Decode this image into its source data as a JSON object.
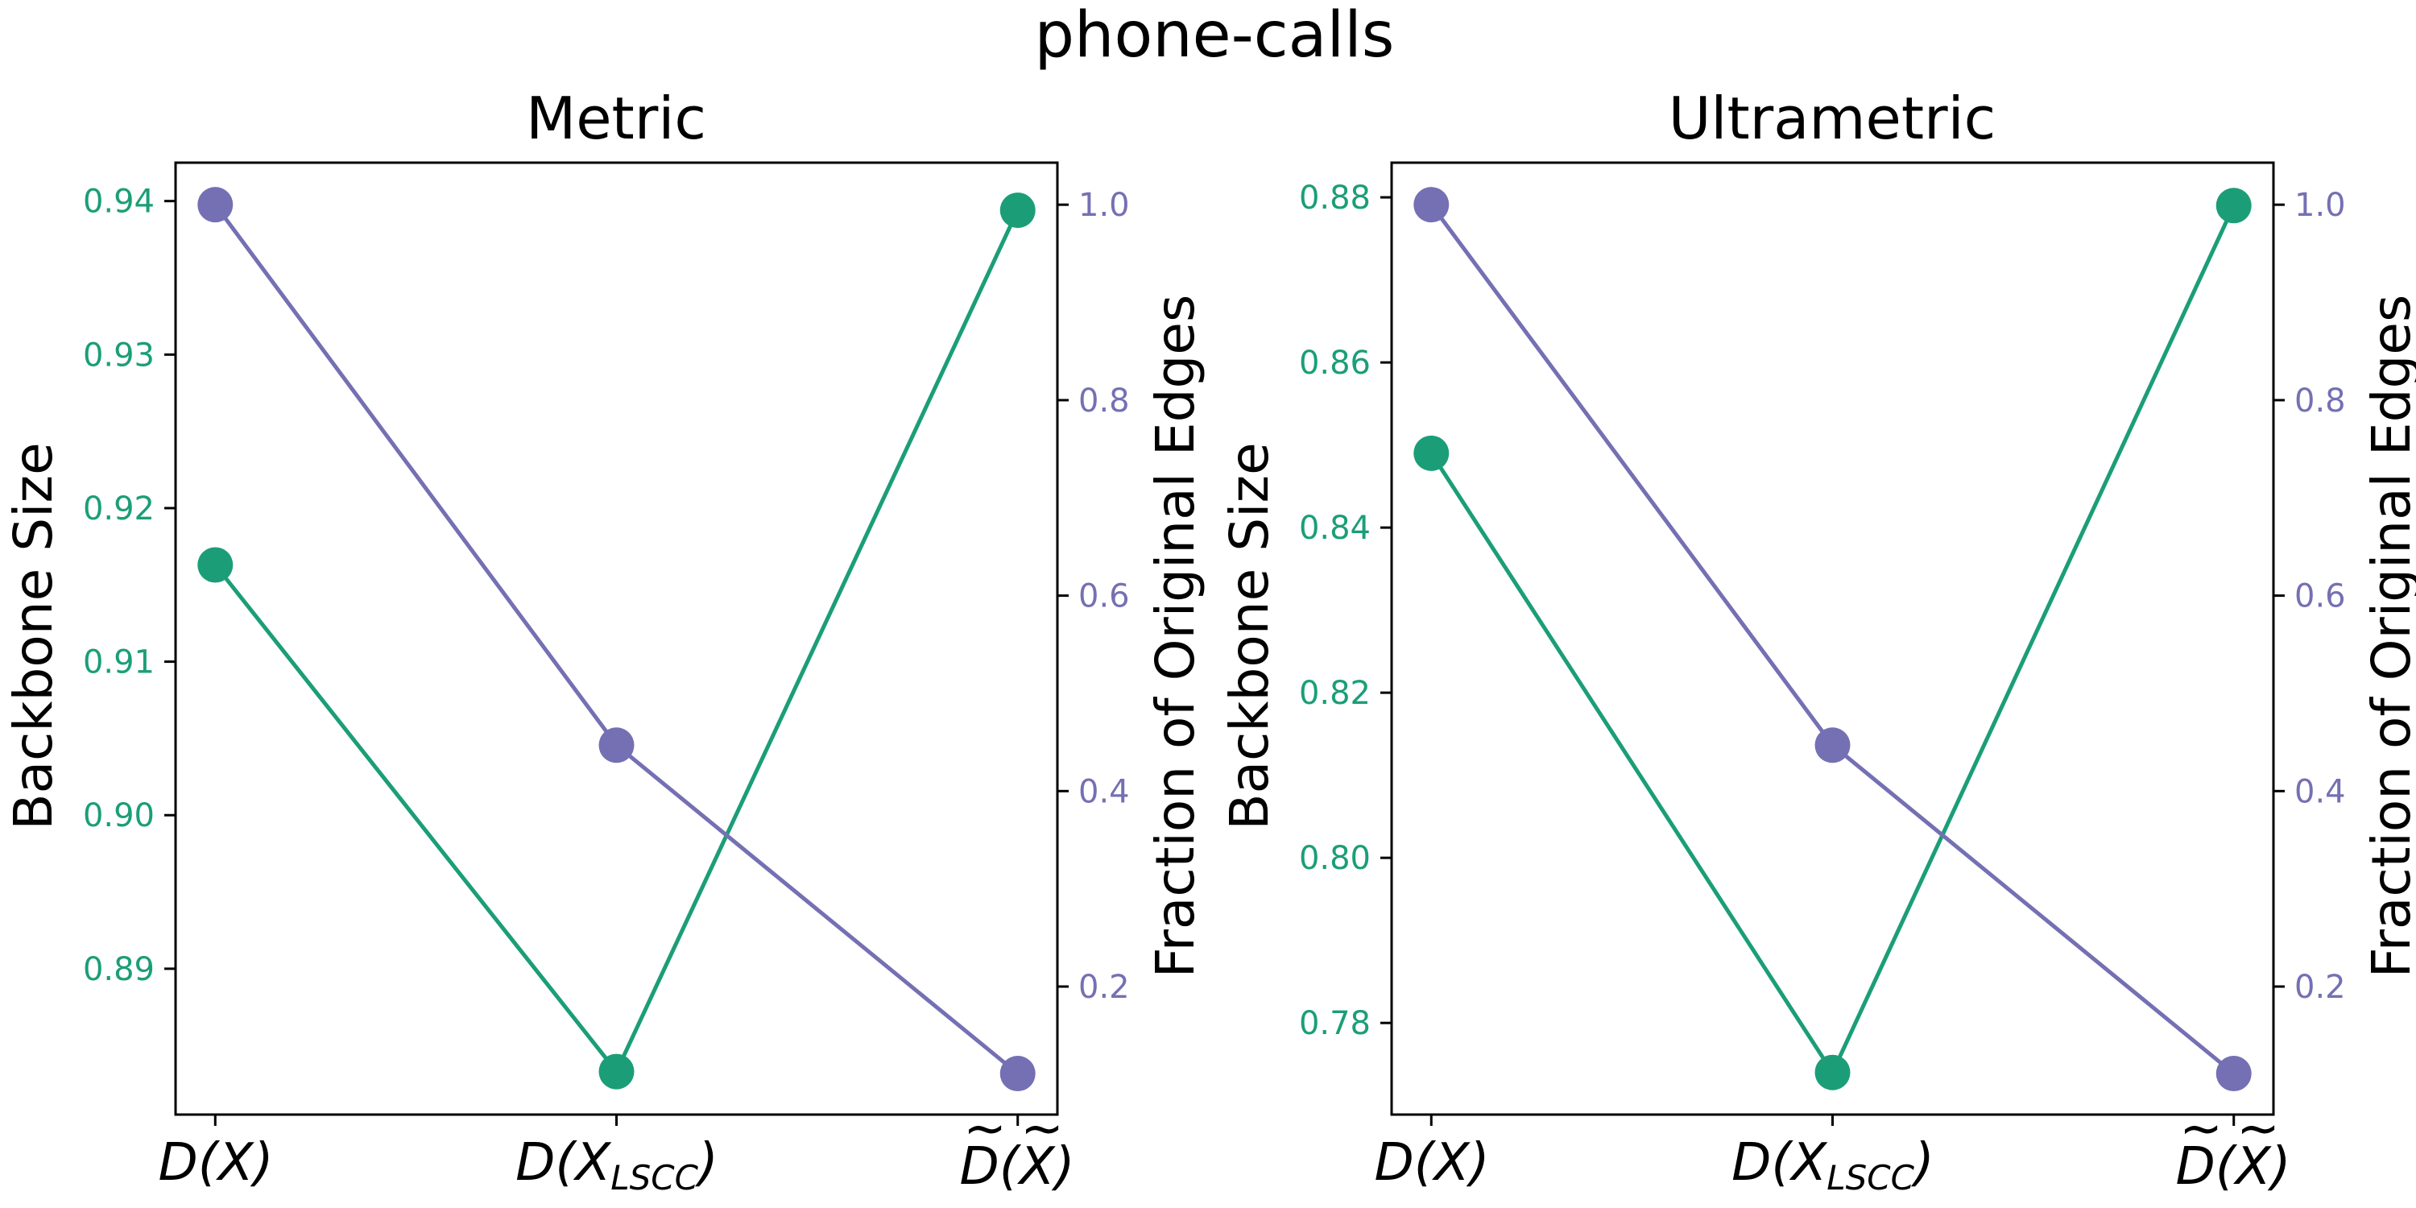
{
  "figure_title": "phone-calls",
  "colors": {
    "backbone": "#1b9e77",
    "fraction": "#7570b3",
    "frame": "#000000"
  },
  "chart_data": [
    {
      "type": "line",
      "title": "Metric",
      "categories": [
        "D(X)",
        "D(X_LSCC)",
        "D̃(X̃)"
      ],
      "left_axis": {
        "label": "Backbone Size",
        "ylim": [
          0.8805,
          0.9425
        ],
        "ticks": [
          0.89,
          0.9,
          0.91,
          0.92,
          0.93,
          0.94
        ],
        "tick_labels": [
          "0.89",
          "0.90",
          "0.91",
          "0.92",
          "0.93",
          "0.94"
        ]
      },
      "right_axis": {
        "label": "Fraction of Original Edges",
        "ylim": [
          0.069,
          1.043
        ],
        "ticks": [
          0.2,
          0.4,
          0.6,
          0.8,
          1.0
        ],
        "tick_labels": [
          "0.2",
          "0.4",
          "0.6",
          "0.8",
          "1.0"
        ]
      },
      "series": [
        {
          "axis": "left",
          "values": [
            0.9163,
            0.8833,
            0.9394
          ]
        },
        {
          "axis": "right",
          "values": [
            1.0,
            0.447,
            0.111
          ]
        }
      ]
    },
    {
      "type": "line",
      "title": "Ultrametric",
      "categories": [
        "D(X)",
        "D(X_LSCC)",
        "D̃(X̃)"
      ],
      "left_axis": {
        "label": "Backbone Size",
        "ylim": [
          0.7689,
          0.8842
        ],
        "ticks": [
          0.78,
          0.8,
          0.82,
          0.84,
          0.86,
          0.88
        ],
        "tick_labels": [
          "0.78",
          "0.80",
          "0.82",
          "0.84",
          "0.86",
          "0.88"
        ]
      },
      "right_axis": {
        "label": "Fraction of Original Edges",
        "ylim": [
          0.069,
          1.043
        ],
        "ticks": [
          0.2,
          0.4,
          0.6,
          0.8,
          1.0
        ],
        "tick_labels": [
          "0.2",
          "0.4",
          "0.6",
          "0.8",
          "1.0"
        ]
      },
      "series": [
        {
          "axis": "left",
          "values": [
            0.849,
            0.774,
            0.879
          ]
        },
        {
          "axis": "right",
          "values": [
            1.0,
            0.447,
            0.111
          ]
        }
      ]
    }
  ]
}
